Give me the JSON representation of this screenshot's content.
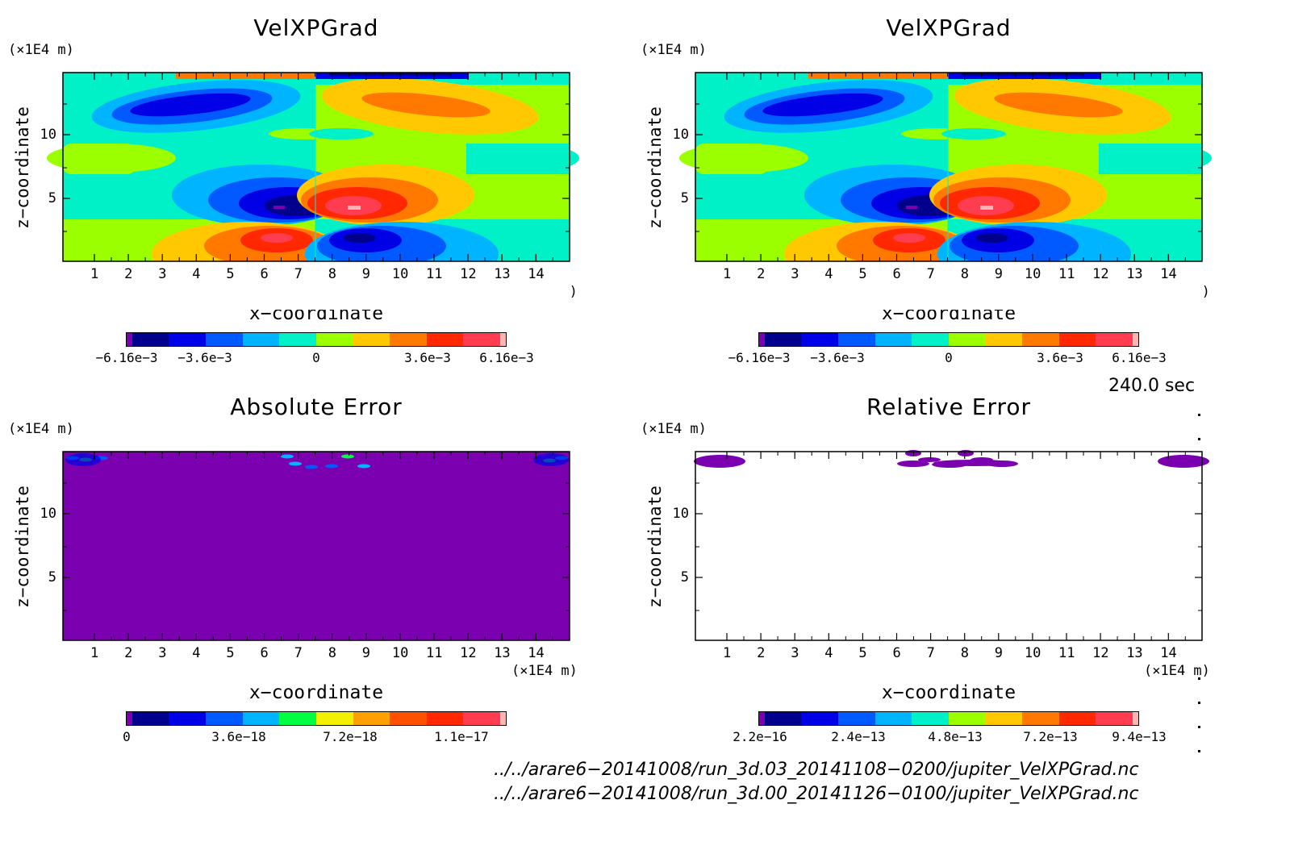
{
  "chart_data": [
    {
      "type": "heatmap",
      "title": "VelXPGrad",
      "xlabel": "x−coordinate",
      "ylabel": "z−coordinate",
      "x_unit": "(×1E4 m)",
      "y_unit": "(×1E4 m)",
      "xlim": [
        0,
        15
      ],
      "ylim": [
        0,
        15
      ],
      "x_ticks": [
        "1",
        "2",
        "3",
        "4",
        "5",
        "6",
        "7",
        "8",
        "9",
        "10",
        "11",
        "12",
        "13",
        "14"
      ],
      "y_ticks": [
        "5",
        "10"
      ],
      "colorbar_labels": [
        "−6.16e−3",
        "−3.6e−3",
        "0",
        "3.6e−3",
        "6.16e−3"
      ],
      "colorbar_range": [
        -0.00616,
        0.00616
      ]
    },
    {
      "type": "heatmap",
      "title": "VelXPGrad",
      "xlabel": "x−coordinate",
      "ylabel": "z−coordinate",
      "x_unit": "(×1E4 m)",
      "y_unit": "(×1E4 m)",
      "xlim": [
        0,
        15
      ],
      "ylim": [
        0,
        15
      ],
      "x_ticks": [
        "1",
        "2",
        "3",
        "4",
        "5",
        "6",
        "7",
        "8",
        "9",
        "10",
        "11",
        "12",
        "13",
        "14"
      ],
      "y_ticks": [
        "5",
        "10"
      ],
      "colorbar_labels": [
        "−6.16e−3",
        "−3.6e−3",
        "0",
        "3.6e−3",
        "6.16e−3"
      ],
      "colorbar_range": [
        -0.00616,
        0.00616
      ]
    },
    {
      "type": "heatmap",
      "title": "Absolute Error",
      "xlabel": "x−coordinate",
      "ylabel": "z−coordinate",
      "x_unit": "(×1E4 m)",
      "y_unit": "(×1E4 m)",
      "xlim": [
        0,
        15
      ],
      "ylim": [
        0,
        15
      ],
      "x_ticks": [
        "1",
        "2",
        "3",
        "4",
        "5",
        "6",
        "7",
        "8",
        "9",
        "10",
        "11",
        "12",
        "13",
        "14"
      ],
      "y_ticks": [
        "5",
        "10"
      ],
      "colorbar_labels": [
        "0",
        "3.6e−18",
        "7.2e−18",
        "1.1e−17"
      ],
      "colorbar_range": [
        0,
        1.2e-17
      ]
    },
    {
      "type": "heatmap",
      "title": "Relative Error",
      "xlabel": "x−coordinate",
      "ylabel": "z−coordinate",
      "x_unit": "(×1E4 m)",
      "y_unit": "(×1E4 m)",
      "xlim": [
        0,
        15
      ],
      "ylim": [
        0,
        15
      ],
      "x_ticks": [
        "1",
        "2",
        "3",
        "4",
        "5",
        "6",
        "7",
        "8",
        "9",
        "10",
        "11",
        "12",
        "13",
        "14"
      ],
      "y_ticks": [
        "5",
        "10"
      ],
      "colorbar_labels": [
        "2.2e−16",
        "2.4e−13",
        "4.8e−13",
        "7.2e−13",
        "9.4e−13"
      ],
      "colorbar_range": [
        2.2e-16,
        9.4e-13
      ]
    }
  ],
  "time_label": "240.0 sec",
  "file_paths": [
    "../../arare6−20141008/run_3d.03_20141108−0200/jupiter_VelXPGrad.nc",
    "../../arare6−20141008/run_3d.00_20141126−0100/jupiter_VelXPGrad.nc"
  ],
  "colors": {
    "field_scale": [
      "#7a00b0",
      "#00008c",
      "#0000e6",
      "#005aff",
      "#00b4ff",
      "#00f0c8",
      "#9cff00",
      "#ffc800",
      "#ff7800",
      "#ff2800",
      "#ff3c50",
      "#ffb4b4"
    ],
    "error_scale": [
      "#7a00b0",
      "#00008c",
      "#0000e6",
      "#005aff",
      "#00b4ff",
      "#00ff40",
      "#f0f000",
      "#ffa000",
      "#ff5000",
      "#ff2800",
      "#ff3c50",
      "#ffb4b4"
    ],
    "error_scale_relative": [
      "#7a00b0",
      "#00008c",
      "#0000e6",
      "#005aff",
      "#00b4ff",
      "#00f0c8",
      "#9cff00",
      "#ffc800",
      "#ff7800",
      "#ff2800",
      "#ff3c50",
      "#ffb4b4"
    ]
  }
}
